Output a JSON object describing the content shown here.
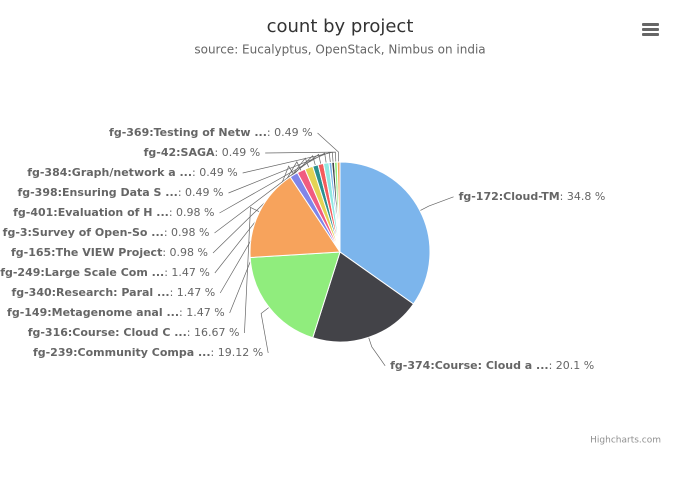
{
  "chart_data": {
    "type": "pie",
    "title": "count by project",
    "subtitle": "source: Eucalyptus, OpenStack, Nimbus on india",
    "categories": [
      "fg-172:Cloud-TM",
      "fg-374:Course: Cloud a ...",
      "fg-239:Community Compa ...",
      "fg-316:Course: Cloud C ...",
      "fg-149:Metagenome anal ...",
      "fg-340:Research: Paral ...",
      "fg-249:Large Scale Com ...",
      "fg-165:The VIEW Project",
      "fg-3:Survey of Open-So ...",
      "fg-401:Evaluation of H ...",
      "fg-398:Ensuring Data S ...",
      "fg-384:Graph/network a ...",
      "fg-42:SAGA",
      "fg-369:Testing of Netw ..."
    ],
    "values": [
      34.8,
      20.1,
      19.12,
      16.67,
      1.47,
      1.47,
      1.47,
      0.98,
      0.98,
      0.98,
      0.49,
      0.49,
      0.49,
      0.49
    ],
    "value_labels": [
      ": 34.8 %",
      ": 20.1 %",
      ": 19.12 %",
      ": 16.67 %",
      ": 1.47 %",
      ": 1.47 %",
      ": 1.47 %",
      ": 0.98 %",
      ": 0.98 %",
      ": 0.98 %",
      ": 0.49 %",
      ": 0.49 %",
      ": 0.49 %",
      ": 0.49 %"
    ],
    "colors": [
      "#7cb5ec",
      "#434348",
      "#90ed7d",
      "#f7a35c",
      "#8085e9",
      "#f15c80",
      "#e4d354",
      "#2b908f",
      "#f45b5b",
      "#91e8e1",
      "#7cb5ec",
      "#434348",
      "#90ed7d",
      "#f7a35c"
    ],
    "credit": "Highcharts.com"
  }
}
